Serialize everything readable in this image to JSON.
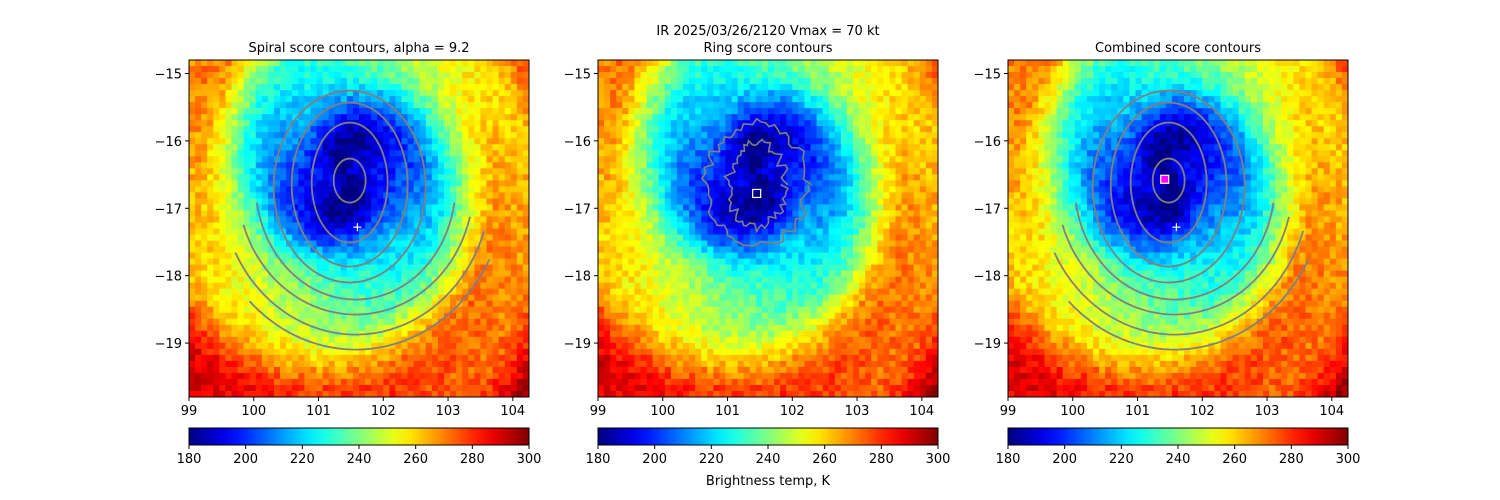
{
  "figure": {
    "suptitle_line1": "IR  2025/03/26/2120    Vmax = 70 kt",
    "colorbar_label": "Brightness temp, K"
  },
  "colormap": "jet-reversed",
  "colors": {
    "contour": "#808080",
    "marker_plus": "#ffffff",
    "marker_square": "#ffffff",
    "marker_circle": "#ff00ff"
  },
  "chart_data": [
    {
      "type": "heatmap",
      "title": "Spiral score contours, alpha =  9.2",
      "xlim": [
        99,
        104.25
      ],
      "ylim": [
        -19.8,
        -14.8
      ],
      "xticks": [
        99,
        100,
        101,
        102,
        103,
        104
      ],
      "yticks": [
        -15,
        -16,
        -17,
        -18,
        -19
      ],
      "colorbar": {
        "vmin": 180,
        "vmax": 300,
        "ticks": [
          180,
          200,
          220,
          240,
          260,
          280,
          300
        ]
      },
      "storm_center": {
        "lon": 101.45,
        "lat": -16.5
      },
      "markers": [
        {
          "shape": "plus",
          "lon": 101.6,
          "lat": -17.28
        }
      ],
      "contours": "spiral"
    },
    {
      "type": "heatmap",
      "title": "Ring score contours",
      "xlim": [
        99,
        104.25
      ],
      "ylim": [
        -19.8,
        -14.8
      ],
      "xticks": [
        99,
        100,
        101,
        102,
        103,
        104
      ],
      "yticks": [
        -15,
        -16,
        -17,
        -18,
        -19
      ],
      "colorbar": {
        "vmin": 180,
        "vmax": 300,
        "ticks": [
          180,
          200,
          220,
          240,
          260,
          280,
          300
        ]
      },
      "storm_center": {
        "lon": 101.45,
        "lat": -16.5
      },
      "markers": [
        {
          "shape": "square",
          "lon": 101.45,
          "lat": -16.78
        }
      ],
      "contours": "ring"
    },
    {
      "type": "heatmap",
      "title": "Combined score contours",
      "xlim": [
        99,
        104.25
      ],
      "ylim": [
        -19.8,
        -14.8
      ],
      "xticks": [
        99,
        100,
        101,
        102,
        103,
        104
      ],
      "yticks": [
        -15,
        -16,
        -17,
        -18,
        -19
      ],
      "colorbar": {
        "vmin": 180,
        "vmax": 300,
        "ticks": [
          180,
          200,
          220,
          240,
          260,
          280,
          300
        ]
      },
      "storm_center": {
        "lon": 101.45,
        "lat": -16.5
      },
      "markers": [
        {
          "shape": "square",
          "lon": 101.42,
          "lat": -16.57
        },
        {
          "shape": "plus",
          "lon": 101.6,
          "lat": -17.28
        }
      ],
      "contours": "combined"
    }
  ]
}
